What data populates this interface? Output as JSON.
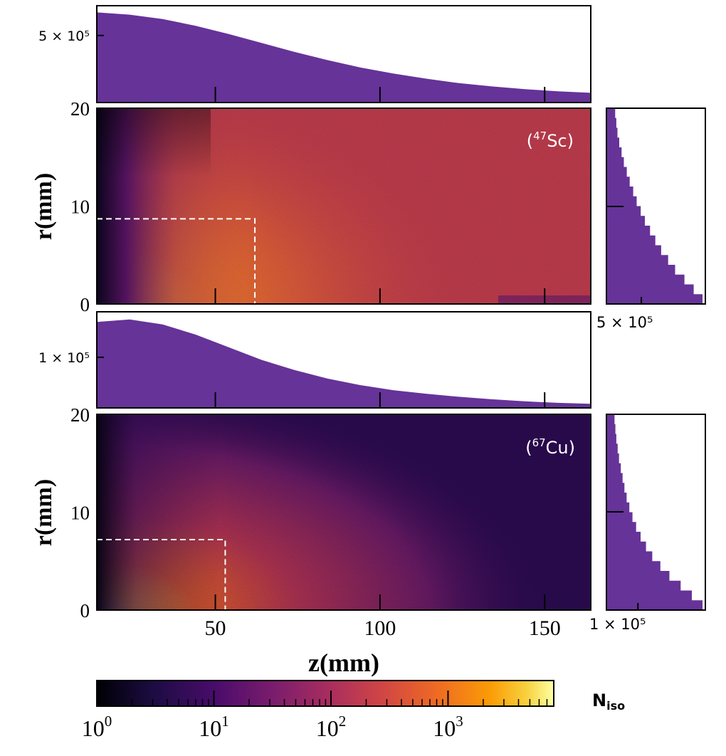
{
  "figure": {
    "shared_xlabel": "z(mm)",
    "x_ticks": [
      "50",
      "100",
      "150"
    ],
    "colorbar": {
      "label_main": "N",
      "label_sub": "iso",
      "scale": "log",
      "range": [
        1,
        8000
      ],
      "colormap": "inferno",
      "tick_labels": [
        {
          "base": "10",
          "exp": "0"
        },
        {
          "base": "10",
          "exp": "1"
        },
        {
          "base": "10",
          "exp": "2"
        },
        {
          "base": "10",
          "exp": "3"
        }
      ]
    }
  },
  "chart_data": [
    {
      "type": "heatmap",
      "isotope_label": {
        "open": "(",
        "mass": "47",
        "symbol": "Sc",
        "close": ")"
      },
      "xlabel": "z(mm)",
      "ylabel": "r(mm)",
      "xlim": [
        14,
        164
      ],
      "ylim": [
        0,
        20
      ],
      "y_tick_labels": [
        "0",
        "10",
        "20"
      ],
      "dashed_box": {
        "z_max": 62,
        "r_max": 8.7
      },
      "top_marginal": {
        "type": "area",
        "tick_label": "5 × 10⁵",
        "tick_value": 500000,
        "ylim": [
          50000,
          700000
        ],
        "z": [
          14,
          24,
          34,
          44,
          54,
          64,
          74,
          84,
          94,
          104,
          114,
          124,
          134,
          144,
          154,
          164
        ],
        "counts": [
          655000,
          640000,
          610000,
          565000,
          510000,
          450000,
          390000,
          335000,
          285000,
          245000,
          210000,
          180000,
          158000,
          140000,
          125000,
          115000
        ]
      },
      "right_marginal": {
        "type": "bar",
        "tick_label": "5 × 10⁵",
        "tick_value": 500000,
        "xlim": [
          200000,
          1050000
        ],
        "r": [
          0.5,
          1.5,
          2.5,
          3.5,
          4.5,
          5.5,
          6.5,
          7.5,
          8.5,
          9.5,
          10.5,
          11.5,
          12.5,
          13.5,
          14.5,
          15.5,
          16.5,
          17.5,
          18.5,
          19.5
        ],
        "counts": [
          1030000,
          950000,
          870000,
          790000,
          730000,
          670000,
          620000,
          575000,
          530000,
          495000,
          460000,
          430000,
          400000,
          375000,
          350000,
          330000,
          310000,
          295000,
          285000,
          275000
        ]
      }
    },
    {
      "type": "heatmap",
      "isotope_label": {
        "open": "(",
        "mass": "67",
        "symbol": "Cu",
        "close": ")"
      },
      "xlabel": "z(mm)",
      "ylabel": "r(mm)",
      "xlim": [
        14,
        164
      ],
      "ylim": [
        0,
        20
      ],
      "y_tick_labels": [
        "0",
        "10",
        "20"
      ],
      "dashed_box": {
        "z_max": 53,
        "r_max": 7.2
      },
      "top_marginal": {
        "type": "area",
        "tick_label": "1 × 10⁵",
        "tick_value": 100000,
        "ylim": [
          0,
          190000
        ],
        "z": [
          14,
          24,
          34,
          44,
          54,
          64,
          74,
          84,
          94,
          104,
          114,
          124,
          134,
          144,
          154,
          164
        ],
        "counts": [
          170000,
          175000,
          165000,
          145000,
          120000,
          95000,
          75000,
          58000,
          45000,
          35000,
          28000,
          22000,
          17000,
          13000,
          10000,
          8000
        ]
      },
      "right_marginal": {
        "type": "bar",
        "tick_label": "1 × 10⁵",
        "tick_value": 100000,
        "xlim": [
          30000,
          250000
        ],
        "r": [
          0.5,
          1.5,
          2.5,
          3.5,
          4.5,
          5.5,
          6.5,
          7.5,
          8.5,
          9.5,
          10.5,
          11.5,
          12.5,
          13.5,
          14.5,
          15.5,
          16.5,
          17.5,
          18.5,
          19.5
        ],
        "counts": [
          245000,
          220000,
          195000,
          170000,
          150000,
          132000,
          118000,
          106000,
          96000,
          88000,
          81000,
          75000,
          70000,
          66000,
          62000,
          58000,
          55000,
          52000,
          50000,
          48000
        ]
      }
    }
  ],
  "colors": {
    "marginal_fill": "#663399",
    "dashed_box": "#ffffff",
    "frame": "#000000"
  }
}
